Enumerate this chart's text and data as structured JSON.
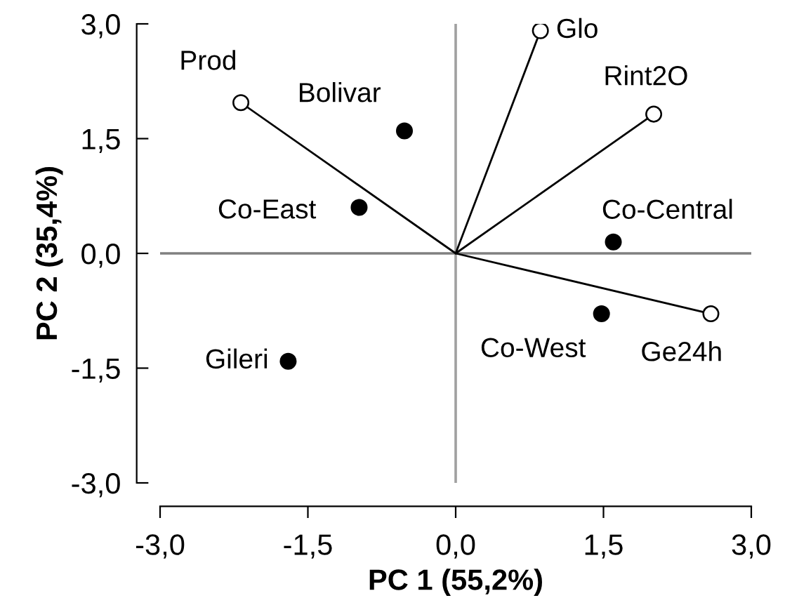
{
  "chart_data": {
    "type": "scatter",
    "xlabel": "PC 1 (55,2%)",
    "ylabel": "PC 2 (35,4%)",
    "xlim": [
      -3.0,
      3.0
    ],
    "ylim": [
      -3.0,
      3.0
    ],
    "xticks": [
      {
        "value": -3.0,
        "label": "-3,0"
      },
      {
        "value": -1.5,
        "label": "-1,5"
      },
      {
        "value": 0.0,
        "label": "0,0"
      },
      {
        "value": 1.5,
        "label": "1,5"
      },
      {
        "value": 3.0,
        "label": "3,0"
      }
    ],
    "yticks": [
      {
        "value": -3.0,
        "label": "-3,0"
      },
      {
        "value": -1.5,
        "label": "-1,5"
      },
      {
        "value": 0.0,
        "label": "0,0"
      },
      {
        "value": 1.5,
        "label": "1,5"
      },
      {
        "value": 3.0,
        "label": "3,0"
      }
    ],
    "grid": false,
    "legend": false,
    "ref_lines": [
      {
        "axis": "x",
        "value": 0,
        "color": "#a0a0a0"
      },
      {
        "axis": "y",
        "value": 0,
        "color": "#808080"
      }
    ],
    "series": [
      {
        "type": "line",
        "color": "#000000",
        "marker": "none",
        "x": [
          -2.18,
          0,
          2.59,
          null,
          0,
          0.86,
          null,
          0,
          2.01
        ],
        "values": [
          1.97,
          0,
          -0.79,
          null,
          0,
          2.91,
          null,
          0,
          1.82
        ]
      },
      {
        "color": "#ffffff",
        "marker": "circle",
        "x": [
          -2.18,
          0.86,
          2.01,
          2.59
        ],
        "values": [
          1.97,
          2.91,
          1.82,
          -0.79
        ]
      },
      {
        "color": "#000000",
        "marker": "circle",
        "x": [
          -0.52,
          -0.98,
          1.6,
          1.48,
          -1.7
        ],
        "values": [
          1.6,
          0.6,
          0.15,
          -0.79,
          -1.41
        ]
      }
    ],
    "annotations": [
      {
        "text": "Prod",
        "x": -2.18,
        "y": 1.97
      },
      {
        "text": "Glo",
        "x": 0.86,
        "y": 2.91
      },
      {
        "text": "Rint2O",
        "x": 2.01,
        "y": 1.82
      },
      {
        "text": "Ge24h",
        "x": 2.59,
        "y": -0.79
      },
      {
        "text": "Bolivar",
        "x": -0.52,
        "y": 1.6
      },
      {
        "text": "Co-East",
        "x": -0.98,
        "y": 0.6
      },
      {
        "text": "Co-Central",
        "x": 1.6,
        "y": 0.15
      },
      {
        "text": "Co-West",
        "x": 1.48,
        "y": -0.79
      },
      {
        "text": "Gileri",
        "x": -1.7,
        "y": -1.41
      }
    ]
  }
}
